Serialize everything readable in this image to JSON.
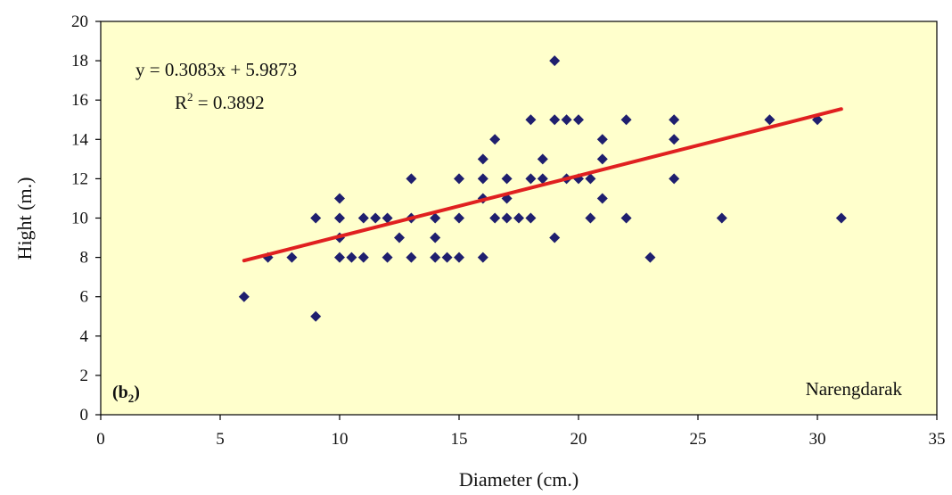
{
  "chart_data": {
    "type": "scatter",
    "title": "",
    "xlabel": "Diameter (cm.)",
    "ylabel": "Hight (m.)",
    "xlim": [
      0,
      35
    ],
    "ylim": [
      0,
      20
    ],
    "xticks": [
      0,
      5,
      10,
      15,
      20,
      25,
      30,
      35
    ],
    "yticks": [
      0,
      2,
      4,
      6,
      8,
      10,
      12,
      14,
      16,
      18,
      20
    ],
    "grid": false,
    "plot_background": "#ffffcc",
    "marker_color": "#1f1f6e",
    "trendline_color": "#e02020",
    "equation": {
      "text": "y = 0.3083x + 5.9873",
      "r2_base": "R",
      "r2_exp": "2",
      "r2_value": " = 0.3892"
    },
    "panel_label": {
      "prefix": "(b",
      "sub": "2",
      "suffix": ")"
    },
    "site_label": "Narengdarak",
    "trendline": {
      "slope": 0.3083,
      "intercept": 5.9873,
      "x_range": [
        6,
        31
      ]
    },
    "points": [
      [
        6,
        6
      ],
      [
        7,
        8
      ],
      [
        8,
        8
      ],
      [
        9,
        10
      ],
      [
        9,
        5
      ],
      [
        10,
        11
      ],
      [
        10,
        10
      ],
      [
        10,
        9
      ],
      [
        10,
        8
      ],
      [
        10.5,
        8
      ],
      [
        11,
        8
      ],
      [
        11,
        10
      ],
      [
        11.5,
        10
      ],
      [
        12,
        10
      ],
      [
        12,
        8
      ],
      [
        12.5,
        9
      ],
      [
        13,
        12
      ],
      [
        13,
        10
      ],
      [
        13,
        8
      ],
      [
        14,
        10
      ],
      [
        14,
        9
      ],
      [
        14,
        8
      ],
      [
        14.5,
        8
      ],
      [
        15,
        8
      ],
      [
        15,
        10
      ],
      [
        15,
        12
      ],
      [
        16,
        13
      ],
      [
        16,
        12
      ],
      [
        16,
        11
      ],
      [
        16,
        8
      ],
      [
        16.5,
        14
      ],
      [
        16.5,
        10
      ],
      [
        17,
        12
      ],
      [
        17,
        11
      ],
      [
        17,
        10
      ],
      [
        17.5,
        10
      ],
      [
        18,
        10
      ],
      [
        18,
        15
      ],
      [
        18,
        12
      ],
      [
        18.5,
        13
      ],
      [
        18.5,
        12
      ],
      [
        19,
        18
      ],
      [
        19,
        15
      ],
      [
        19,
        9
      ],
      [
        19.5,
        15
      ],
      [
        19.5,
        12
      ],
      [
        20,
        15
      ],
      [
        20,
        12
      ],
      [
        20.5,
        12
      ],
      [
        20.5,
        10
      ],
      [
        21,
        14
      ],
      [
        21,
        13
      ],
      [
        21,
        11
      ],
      [
        22,
        15
      ],
      [
        22,
        10
      ],
      [
        23,
        8
      ],
      [
        24,
        15
      ],
      [
        24,
        14
      ],
      [
        24,
        12
      ],
      [
        26,
        10
      ],
      [
        28,
        15
      ],
      [
        30,
        15
      ],
      [
        31,
        10
      ]
    ]
  }
}
